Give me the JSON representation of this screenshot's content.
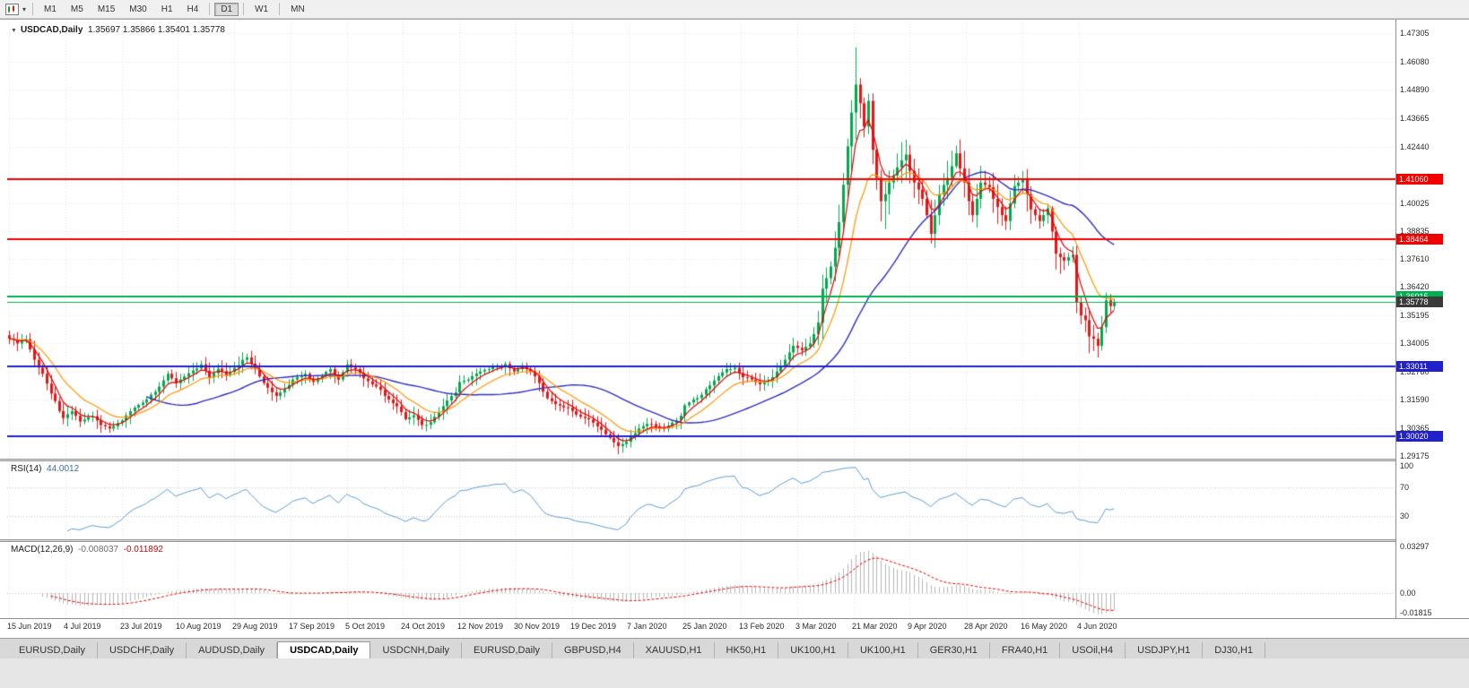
{
  "toolbar": {
    "timeframes": [
      {
        "label": "M1",
        "active": false
      },
      {
        "label": "M5",
        "active": false
      },
      {
        "label": "M15",
        "active": false
      },
      {
        "label": "M30",
        "active": false
      },
      {
        "label": "H1",
        "active": false
      },
      {
        "label": "H4",
        "active": false
      },
      {
        "label": "D1",
        "active": true
      },
      {
        "label": "W1",
        "active": false
      },
      {
        "label": "MN",
        "active": false
      }
    ],
    "separators_after": [
      "H4",
      "D1",
      "W1"
    ]
  },
  "chart": {
    "symbol_header": "USDCAD,Daily",
    "open": "1.35697",
    "high": "1.35866",
    "low": "1.35401",
    "close": "1.35778"
  },
  "rsi": {
    "name": "RSI(14)",
    "value": "44.0012",
    "axis_labels": [
      {
        "text": "100",
        "value": 100
      },
      {
        "text": "70",
        "value": 70
      },
      {
        "text": "30",
        "value": 30
      }
    ],
    "levels": [
      70,
      30
    ]
  },
  "macd": {
    "name": "MACD(12,26,9)",
    "value_main": "-0.008037",
    "value_signal": "-0.011892",
    "axis_labels": [
      {
        "text": "0.03297",
        "value": 0.03297
      },
      {
        "text": "0.00",
        "value": 0
      },
      {
        "text": "-0.01815",
        "value": -0.01815
      }
    ]
  },
  "price_axis": {
    "labels": [
      "1.47305",
      "1.46080",
      "1.44890",
      "1.43665",
      "1.42440",
      "1.40025",
      "1.38835",
      "1.37610",
      "1.36420",
      "1.35195",
      "1.34005",
      "1.32780",
      "1.31590",
      "1.30365",
      "1.29175"
    ],
    "tags": [
      {
        "text": "1.41060",
        "price": 1.4106,
        "bg": "#f20000",
        "fg": "#ffffff"
      },
      {
        "text": "1.38464",
        "price": 1.38464,
        "bg": "#f20000",
        "fg": "#ffffff"
      },
      {
        "text": "1.36015",
        "price": 1.36015,
        "bg": "#00b050",
        "fg": "#ffffff"
      },
      {
        "text": "1.35778",
        "price": 1.35778,
        "bg": "#3a3a3a",
        "fg": "#ffffff"
      },
      {
        "text": "1.33011",
        "price": 1.33011,
        "bg": "#2121cc",
        "fg": "#ffffff"
      },
      {
        "text": "1.30020",
        "price": 1.3002,
        "bg": "#2121cc",
        "fg": "#ffffff"
      }
    ]
  },
  "date_axis": {
    "labels": [
      "15 Jun 2019",
      "4 Jul 2019",
      "23 Jul 2019",
      "10 Aug 2019",
      "29 Aug 2019",
      "17 Sep 2019",
      "5 Oct 2019",
      "24 Oct 2019",
      "12 Nov 2019",
      "30 Nov 2019",
      "19 Dec 2019",
      "7 Jan 2020",
      "25 Jan 2020",
      "13 Feb 2020",
      "3 Mar 2020",
      "21 Mar 2020",
      "9 Apr 2020",
      "28 Apr 2020",
      "16 May 2020",
      "4 Jun 2020"
    ]
  },
  "tabs": [
    {
      "label": "EURUSD,Daily",
      "active": false
    },
    {
      "label": "USDCHF,Daily",
      "active": false
    },
    {
      "label": "AUDUSD,Daily",
      "active": false
    },
    {
      "label": "USDCAD,Daily",
      "active": true
    },
    {
      "label": "USDCNH,Daily",
      "active": false
    },
    {
      "label": "EURUSD,Daily",
      "active": false
    },
    {
      "label": "GBPUSD,H4",
      "active": false
    },
    {
      "label": "XAUUSD,H1",
      "active": false
    },
    {
      "label": "HK50,H1",
      "active": false
    },
    {
      "label": "UK100,H1",
      "active": false
    },
    {
      "label": "UK100,H1",
      "active": false
    },
    {
      "label": "GER30,H1",
      "active": false
    },
    {
      "label": "FRA40,H1",
      "active": false
    },
    {
      "label": "USOil,H4",
      "active": false
    },
    {
      "label": "USDJPY,H1",
      "active": false
    },
    {
      "label": "DJ30,H1",
      "active": false
    }
  ],
  "colors": {
    "bull": "#00a94f",
    "bear": "#e81414",
    "ma_fast": "#e00000",
    "ma_mid": "#ff9500",
    "ma_slow": "#3030c0",
    "rsi_line": "#5b9bd5",
    "macd_hist": "#b4b4b4",
    "macd_signal": "#e00000",
    "grid": "#e4e4e4",
    "sub_grid": "#c8c8c8"
  },
  "chart_data": {
    "type": "candlestick",
    "symbol": "USDCAD",
    "timeframe": "Daily",
    "ohlc_current": {
      "open": 1.35697,
      "high": 1.35866,
      "low": 1.35401,
      "close": 1.35778
    },
    "visible_price_range": [
      1.29175,
      1.47305
    ],
    "visible_date_range": [
      "15 Jun 2019",
      "12 Jun 2020"
    ],
    "bar_count": 266,
    "wiggle_amp": 0.0013,
    "high_overrides": [
      [
        203,
        1.467
      ]
    ],
    "low_overrides": [
      [
        261,
        1.334
      ]
    ],
    "anchors": [
      [
        0,
        1.342
      ],
      [
        2,
        1.34
      ],
      [
        4,
        1.3418
      ],
      [
        6,
        1.333
      ],
      [
        8,
        1.327
      ],
      [
        10,
        1.3185
      ],
      [
        13,
        1.308
      ],
      [
        15,
        1.311
      ],
      [
        17,
        1.3065
      ],
      [
        20,
        1.3088
      ],
      [
        22,
        1.305
      ],
      [
        24,
        1.3035
      ],
      [
        27,
        1.307
      ],
      [
        30,
        1.3125
      ],
      [
        33,
        1.316
      ],
      [
        36,
        1.3215
      ],
      [
        38,
        1.327
      ],
      [
        40,
        1.323
      ],
      [
        43,
        1.3272
      ],
      [
        46,
        1.331
      ],
      [
        48,
        1.3255
      ],
      [
        50,
        1.3292
      ],
      [
        52,
        1.3262
      ],
      [
        54,
        1.3295
      ],
      [
        57,
        1.334
      ],
      [
        59,
        1.329
      ],
      [
        61,
        1.323
      ],
      [
        64,
        1.3175
      ],
      [
        66,
        1.3205
      ],
      [
        68,
        1.3245
      ],
      [
        71,
        1.327
      ],
      [
        73,
        1.3235
      ],
      [
        75,
        1.3262
      ],
      [
        77,
        1.329
      ],
      [
        79,
        1.3245
      ],
      [
        81,
        1.331
      ],
      [
        83,
        1.329
      ],
      [
        85,
        1.325
      ],
      [
        88,
        1.3215
      ],
      [
        91,
        1.316
      ],
      [
        93,
        1.313
      ],
      [
        95,
        1.3075
      ],
      [
        97,
        1.3092
      ],
      [
        99,
        1.305
      ],
      [
        101,
        1.3062
      ],
      [
        103,
        1.3105
      ],
      [
        105,
        1.3155
      ],
      [
        107,
        1.319
      ],
      [
        108,
        1.3235
      ],
      [
        110,
        1.3245
      ],
      [
        113,
        1.328
      ],
      [
        116,
        1.33
      ],
      [
        119,
        1.3312
      ],
      [
        121,
        1.328
      ],
      [
        123,
        1.33
      ],
      [
        125,
        1.328
      ],
      [
        127,
        1.323
      ],
      [
        129,
        1.3165
      ],
      [
        131,
        1.314
      ],
      [
        134,
        1.3125
      ],
      [
        136,
        1.3095
      ],
      [
        138,
        1.308
      ],
      [
        140,
        1.306
      ],
      [
        142,
        1.303
      ],
      [
        144,
        1.2995
      ],
      [
        146,
        1.296
      ],
      [
        148,
        1.2978
      ],
      [
        149,
        1.3
      ],
      [
        151,
        1.3035
      ],
      [
        153,
        1.3055
      ],
      [
        155,
        1.3045
      ],
      [
        157,
        1.3035
      ],
      [
        159,
        1.306
      ],
      [
        161,
        1.309
      ],
      [
        162,
        1.3135
      ],
      [
        164,
        1.316
      ],
      [
        166,
        1.318
      ],
      [
        168,
        1.322
      ],
      [
        170,
        1.326
      ],
      [
        172,
        1.329
      ],
      [
        174,
        1.3295
      ],
      [
        176,
        1.3255
      ],
      [
        178,
        1.3245
      ],
      [
        180,
        1.3225
      ],
      [
        182,
        1.324
      ],
      [
        184,
        1.328
      ],
      [
        186,
        1.333
      ],
      [
        188,
        1.339
      ],
      [
        190,
        1.337
      ],
      [
        192,
        1.34
      ],
      [
        194,
        1.349
      ],
      [
        195,
        1.3635
      ],
      [
        196,
        1.368
      ],
      [
        197,
        1.373
      ],
      [
        198,
        1.381
      ],
      [
        199,
        1.392
      ],
      [
        200,
        1.408
      ],
      [
        201,
        1.4245
      ],
      [
        202,
        1.439
      ],
      [
        203,
        1.451
      ],
      [
        204,
        1.443
      ],
      [
        205,
        1.433
      ],
      [
        206,
        1.444
      ],
      [
        207,
        1.423
      ],
      [
        208,
        1.411
      ],
      [
        209,
        1.401
      ],
      [
        210,
        1.404
      ],
      [
        211,
        1.409
      ],
      [
        212,
        1.412
      ],
      [
        213,
        1.4155
      ],
      [
        214,
        1.4185
      ],
      [
        215,
        1.421
      ],
      [
        216,
        1.414
      ],
      [
        217,
        1.409
      ],
      [
        218,
        1.406
      ],
      [
        219,
        1.402
      ],
      [
        220,
        1.395
      ],
      [
        221,
        1.387
      ],
      [
        222,
        1.395
      ],
      [
        223,
        1.404
      ],
      [
        224,
        1.408
      ],
      [
        225,
        1.411
      ],
      [
        226,
        1.416
      ],
      [
        227,
        1.4215
      ],
      [
        228,
        1.415
      ],
      [
        229,
        1.409
      ],
      [
        230,
        1.401
      ],
      [
        231,
        1.395
      ],
      [
        232,
        1.402
      ],
      [
        233,
        1.409
      ],
      [
        234,
        1.408
      ],
      [
        235,
        1.407
      ],
      [
        236,
        1.402
      ],
      [
        237,
        1.3985
      ],
      [
        238,
        1.395
      ],
      [
        239,
        1.3925
      ],
      [
        240,
        1.4
      ],
      [
        241,
        1.4075
      ],
      [
        242,
        1.409
      ],
      [
        243,
        1.4105
      ],
      [
        244,
        1.404
      ],
      [
        245,
        1.3975
      ],
      [
        246,
        1.395
      ],
      [
        247,
        1.3925
      ],
      [
        248,
        1.395
      ],
      [
        249,
        1.398
      ],
      [
        250,
        1.388
      ],
      [
        251,
        1.3785
      ],
      [
        252,
        1.377
      ],
      [
        253,
        1.3755
      ],
      [
        254,
        1.377
      ],
      [
        255,
        1.378
      ],
      [
        256,
        1.3575
      ],
      [
        257,
        1.352
      ],
      [
        258,
        1.35
      ],
      [
        259,
        1.343
      ],
      [
        260,
        1.342
      ],
      [
        261,
        1.339
      ],
      [
        262,
        1.347
      ],
      [
        263,
        1.3585
      ],
      [
        264,
        1.356
      ],
      [
        265,
        1.3578
      ]
    ],
    "overlays": [
      {
        "name": "fast-ma",
        "type": "ema",
        "period": 5,
        "color_key": "ma_fast"
      },
      {
        "name": "mid-ma",
        "type": "ema",
        "period": 13,
        "color_key": "ma_mid"
      },
      {
        "name": "slow-ma",
        "type": "sma",
        "period": 34,
        "color_key": "ma_slow"
      }
    ],
    "hlines": [
      {
        "price": 1.4106,
        "color": "#f20000",
        "width": 2
      },
      {
        "price": 1.38464,
        "color": "#f20000",
        "width": 2
      },
      {
        "price": 1.36015,
        "color": "#00b050",
        "width": 2
      },
      {
        "price": 1.35778,
        "color": "#00b050",
        "width": 1
      },
      {
        "price": 1.33011,
        "color": "#2121cc",
        "width": 2
      },
      {
        "price": 1.3002,
        "color": "#2121cc",
        "width": 2
      }
    ],
    "indicators": [
      {
        "name": "RSI",
        "period": 14,
        "current_value": 44.0012,
        "levels": [
          30,
          70
        ]
      },
      {
        "name": "MACD",
        "params": [
          12,
          26,
          9
        ],
        "current_values": [
          -0.008037,
          -0.011892
        ]
      }
    ]
  }
}
